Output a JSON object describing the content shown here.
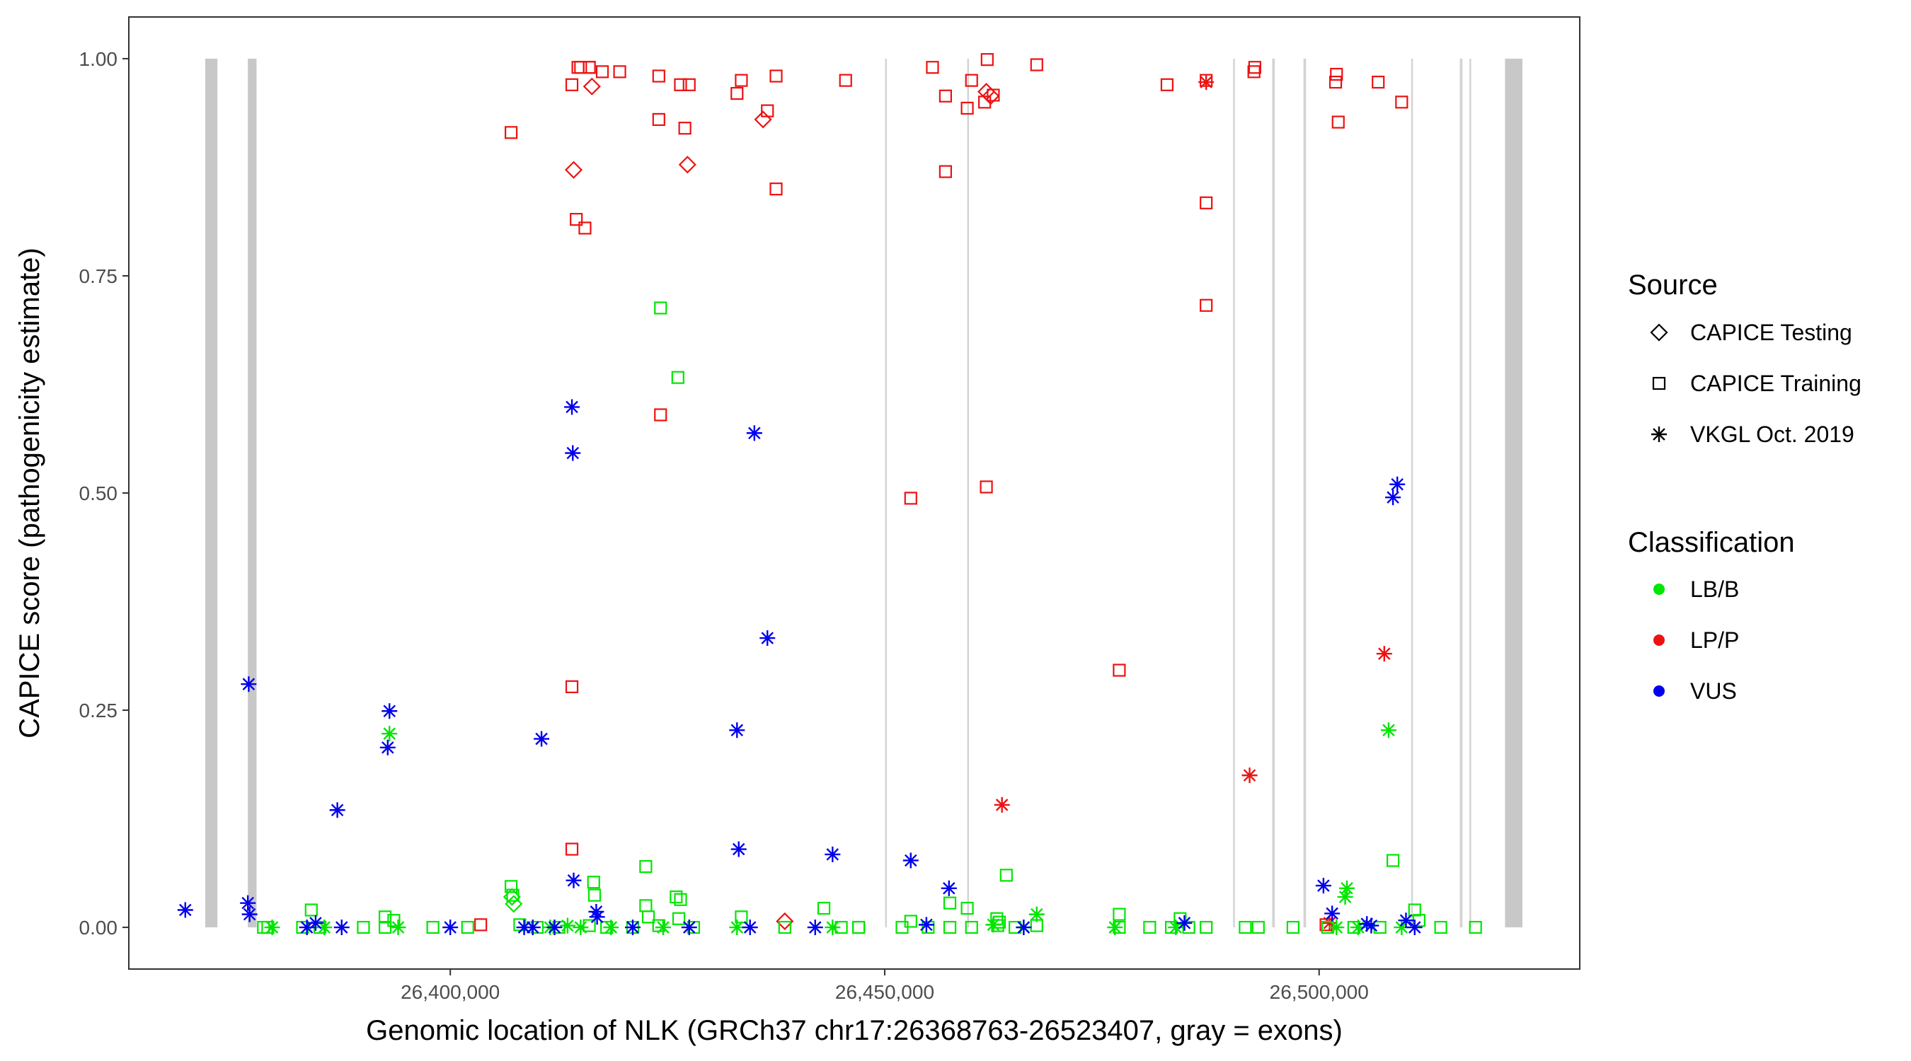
{
  "chart_data": {
    "type": "scatter",
    "xlabel": "Genomic location of NLK (GRCh37 chr17:26368763-26523407, gray = exons)",
    "ylabel": "CAPICE score (pathogenicity estimate)",
    "xlim": [
      26363000,
      26530000
    ],
    "ylim": [
      -0.048,
      1.048
    ],
    "x_ticks": [
      26400000,
      26450000,
      26500000
    ],
    "x_tick_labels": [
      "26,400,000",
      "26,450,000",
      "26,500,000"
    ],
    "y_ticks": [
      0,
      0.25,
      0.5,
      0.75,
      1
    ],
    "y_tick_labels": [
      "0.00",
      "0.25",
      "0.50",
      "0.75",
      "1.00"
    ],
    "grid": false,
    "exons": [
      {
        "start": 26371800,
        "end": 26373200
      },
      {
        "start": 26376700,
        "end": 26377700
      },
      {
        "start": 26450050,
        "end": 26450250
      },
      {
        "start": 26459500,
        "end": 26459700
      },
      {
        "start": 26490100,
        "end": 26490300
      },
      {
        "start": 26494600,
        "end": 26494900
      },
      {
        "start": 26498200,
        "end": 26498500
      },
      {
        "start": 26510600,
        "end": 26510800
      },
      {
        "start": 26516200,
        "end": 26516500
      },
      {
        "start": 26517300,
        "end": 26517500
      },
      {
        "start": 26521400,
        "end": 26523400
      }
    ],
    "legend": {
      "placement": "right",
      "source_title": "Source",
      "source_items": [
        {
          "label": "CAPICE Testing",
          "shape": "diamond"
        },
        {
          "label": "CAPICE Training",
          "shape": "square"
        },
        {
          "label": "VKGL Oct. 2019",
          "shape": "asterisk"
        }
      ],
      "class_title": "Classification",
      "class_items": [
        {
          "label": "LB/B",
          "color": "#00e600"
        },
        {
          "label": "LP/P",
          "color": "#ee1111"
        },
        {
          "label": "VUS",
          "color": "#0000ee"
        }
      ]
    },
    "series": [
      {
        "classification": "LP/P",
        "source": "CAPICE Training",
        "shape": "square",
        "color": "#ee1111",
        "x": [
          26407000,
          26414000,
          26415000,
          26416000,
          26417500,
          26419500,
          26414500,
          26415500,
          26424000,
          26426500,
          26427500,
          26433500,
          26437500,
          26424000,
          26427000,
          26433000,
          26436500,
          26437500,
          26414700,
          26416000,
          26445500,
          26455500,
          26457000,
          26461800,
          26460000,
          26467500,
          26459500,
          26462500,
          26457000,
          26461500,
          26482500,
          26487000,
          26492500,
          26492600,
          26502000,
          26501900,
          26506800,
          26502200,
          26509500,
          26487000,
          26487000,
          26424200,
          26453000,
          26461700,
          26414000,
          26477000,
          26414000,
          26403500,
          26500800
        ],
        "y": [
          0.915,
          0.97,
          0.99,
          0.99,
          0.985,
          0.985,
          0.815,
          0.805,
          0.98,
          0.97,
          0.97,
          0.975,
          0.98,
          0.93,
          0.92,
          0.96,
          0.94,
          0.85,
          0.99,
          0.99,
          0.975,
          0.99,
          0.957,
          0.999,
          0.975,
          0.993,
          0.943,
          0.958,
          0.87,
          0.95,
          0.97,
          0.975,
          0.985,
          0.99,
          0.982,
          0.973,
          0.973,
          0.927,
          0.95,
          0.834,
          0.716,
          0.59,
          0.494,
          0.507,
          0.277,
          0.296,
          0.09,
          0.003,
          0.003
        ]
      },
      {
        "classification": "LP/P",
        "source": "CAPICE Testing",
        "shape": "diamond",
        "color": "#ee1111",
        "x": [
          26414200,
          26416300,
          26427300,
          26436000,
          26461700,
          26462200,
          26438500
        ],
        "y": [
          0.872,
          0.968,
          0.878,
          0.93,
          0.962,
          0.957,
          0.007
        ]
      },
      {
        "classification": "LP/P",
        "source": "VKGL Oct. 2019",
        "shape": "asterisk",
        "color": "#ee1111",
        "x": [
          26487000,
          26507500,
          26492000,
          26463500,
          26501200
        ],
        "y": [
          0.973,
          0.315,
          0.175,
          0.141,
          0.005
        ]
      },
      {
        "classification": "LB/B",
        "source": "CAPICE Training",
        "shape": "square",
        "color": "#00e600",
        "x": [
          26424200,
          26426200,
          26416500,
          26416600,
          26407000,
          26407200,
          26422500,
          26426000,
          26426500,
          26422500,
          26422800,
          26426300,
          26443000,
          26464000,
          26457500,
          26459500,
          26447000,
          26453000,
          26462900,
          26463200,
          26477000,
          26484000,
          26508500,
          26511000,
          26378500,
          26384000,
          26392500,
          26393500,
          26379000,
          26383000,
          26385000,
          26390000,
          26392500,
          26398000,
          26402000,
          26408000,
          26410000,
          26412500,
          26416000,
          26418000,
          26421000,
          26424000,
          26428000,
          26433500,
          26438500,
          26445000,
          26447000,
          26452000,
          26455000,
          26457500,
          26460000,
          26463000,
          26465000,
          26467500,
          26477000,
          26480500,
          26483000,
          26485000,
          26487000,
          26491500,
          26493000,
          26497000,
          26501000,
          26504000,
          26507000,
          26511500,
          26514000,
          26518000
        ],
        "y": [
          0.713,
          0.633,
          0.052,
          0.037,
          0.047,
          0.037,
          0.07,
          0.035,
          0.032,
          0.025,
          0.012,
          0.01,
          0.022,
          0.06,
          0.028,
          0.022,
          0.0,
          0.007,
          0.01,
          0.006,
          0.015,
          0.01,
          0.077,
          0.02,
          0.0,
          0.02,
          0.012,
          0.008,
          0.0,
          0.0,
          0.0,
          0.0,
          0.0,
          0.0,
          0.0,
          0.003,
          0.0,
          0.0,
          0.002,
          0.0,
          0.0,
          0.002,
          0.0,
          0.012,
          0.0,
          0.0,
          0.0,
          0.0,
          0.0,
          0.0,
          0.0,
          0.002,
          0.0,
          0.002,
          0.0,
          0.0,
          0.0,
          0.0,
          0.0,
          0.0,
          0.0,
          0.0,
          0.0,
          0.0,
          0.0,
          0.008,
          0.0,
          0.0
        ]
      },
      {
        "classification": "LB/B",
        "source": "CAPICE Testing",
        "shape": "diamond",
        "color": "#00e600",
        "x": [
          26407100,
          26407300
        ],
        "y": [
          0.035,
          0.027
        ]
      },
      {
        "classification": "LB/B",
        "source": "VKGL Oct. 2019",
        "shape": "asterisk",
        "color": "#00e600",
        "x": [
          26393000,
          26508000,
          26503200,
          26503000,
          26379500,
          26385500,
          26394000,
          26411500,
          26413500,
          26415000,
          26418500,
          26424500,
          26433000,
          26444000,
          26462500,
          26466000,
          26467500,
          26476500,
          26483500,
          26502000,
          26504500,
          26509500
        ],
        "y": [
          0.223,
          0.227,
          0.045,
          0.035,
          0.0,
          0.0,
          0.0,
          0.0,
          0.002,
          0.0,
          0.0,
          0.0,
          0.0,
          0.0,
          0.003,
          0.0,
          0.015,
          0.0,
          0.0,
          0.0,
          0.0,
          0.0
        ]
      },
      {
        "classification": "VUS",
        "source": "VKGL Oct. 2019",
        "shape": "asterisk",
        "color": "#0000ee",
        "x": [
          26369500,
          26376800,
          26376700,
          26376900,
          26387000,
          26393000,
          26392800,
          26410500,
          26414000,
          26414100,
          26414200,
          26416800,
          26416900,
          26433000,
          26433200,
          26435000,
          26436500,
          26444000,
          26453000,
          26457400,
          26454800,
          26508500,
          26509000,
          26500500,
          26501500,
          26505500,
          26506000,
          26510000,
          26383500,
          26384500,
          26387500,
          26400000,
          26408500,
          26409500,
          26412000,
          26421000,
          26427500,
          26434500,
          26442000,
          26466000,
          26484500,
          26511000
        ],
        "y": [
          0.02,
          0.28,
          0.028,
          0.015,
          0.135,
          0.249,
          0.207,
          0.217,
          0.599,
          0.546,
          0.054,
          0.018,
          0.012,
          0.227,
          0.09,
          0.569,
          0.333,
          0.084,
          0.077,
          0.045,
          0.003,
          0.495,
          0.51,
          0.048,
          0.016,
          0.004,
          0.002,
          0.008,
          0.0,
          0.005,
          0.0,
          0.0,
          0.0,
          0.0,
          0.0,
          0.0,
          0.0,
          0.0,
          0.0,
          0.0,
          0.005,
          0.0
        ]
      }
    ]
  }
}
